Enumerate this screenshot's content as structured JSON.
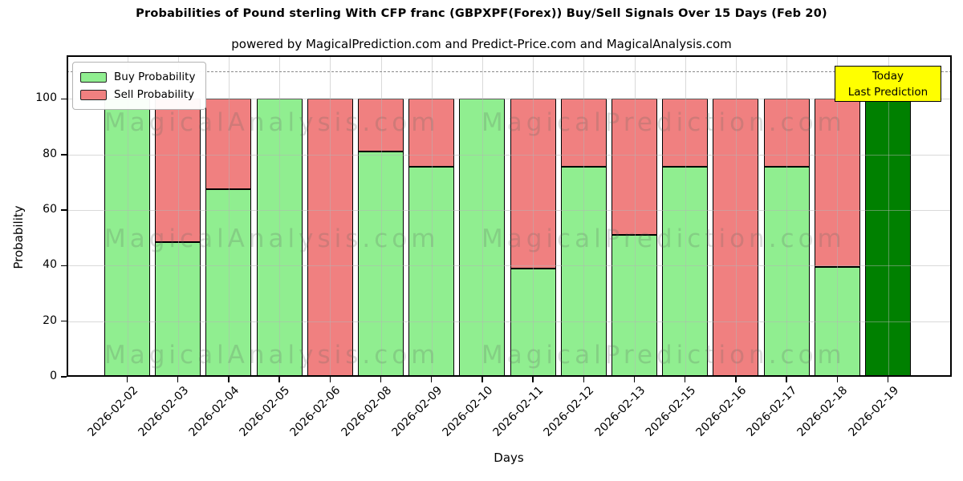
{
  "title": "Probabilities of Pound sterling With CFP franc (GBPXPF(Forex)) Buy/Sell Signals Over 15 Days (Feb 20)",
  "subtitle": "powered by MagicalPrediction.com and Predict-Price.com and MagicalAnalysis.com",
  "legend": {
    "buy_label": "Buy Probability",
    "sell_label": "Sell Probability"
  },
  "annotation": {
    "line1": "Today",
    "line2": "Last Prediction"
  },
  "watermarks": [
    "MagicalAnalysis.com",
    "MagicalPrediction.com"
  ],
  "colors": {
    "buy": "#90EE90",
    "sell": "#F08080",
    "today_bar": "#008000",
    "annotation_bg": "#FFFF00",
    "grid": "#b3b3b3",
    "dashed_line": "#8a8a8a"
  },
  "chart_data": {
    "type": "bar",
    "stacked": true,
    "title": "Probabilities of Pound sterling With CFP franc (GBPXPF(Forex)) Buy/Sell Signals Over 15 Days (Feb 20)",
    "xlabel": "Days",
    "ylabel": "Probability",
    "categories": [
      "2026-02-02",
      "2026-02-03",
      "2026-02-04",
      "2026-02-05",
      "2026-02-06",
      "2026-02-08",
      "2026-02-09",
      "2026-02-10",
      "2026-02-11",
      "2026-02-12",
      "2026-02-13",
      "2026-02-15",
      "2026-02-16",
      "2026-02-17",
      "2026-02-18",
      "2026-02-19"
    ],
    "series": [
      {
        "name": "Buy Probability",
        "color": "#90EE90",
        "values": [
          100,
          48.5,
          67.5,
          100,
          0,
          81,
          75.5,
          100,
          39,
          75.5,
          51,
          75.5,
          0,
          75.5,
          39.5,
          100
        ]
      },
      {
        "name": "Sell Probability",
        "color": "#F08080",
        "values": [
          0,
          51.5,
          32.5,
          0,
          100,
          19,
          24.5,
          0,
          61,
          24.5,
          49,
          24.5,
          100,
          24.5,
          60.5,
          0
        ]
      }
    ],
    "today_bar_index": 15,
    "yticks": [
      0,
      20,
      40,
      60,
      80,
      100
    ],
    "ylim": [
      0,
      115.7
    ],
    "dashed_line_y": 110,
    "grid": true,
    "legend_position": "upper left"
  }
}
